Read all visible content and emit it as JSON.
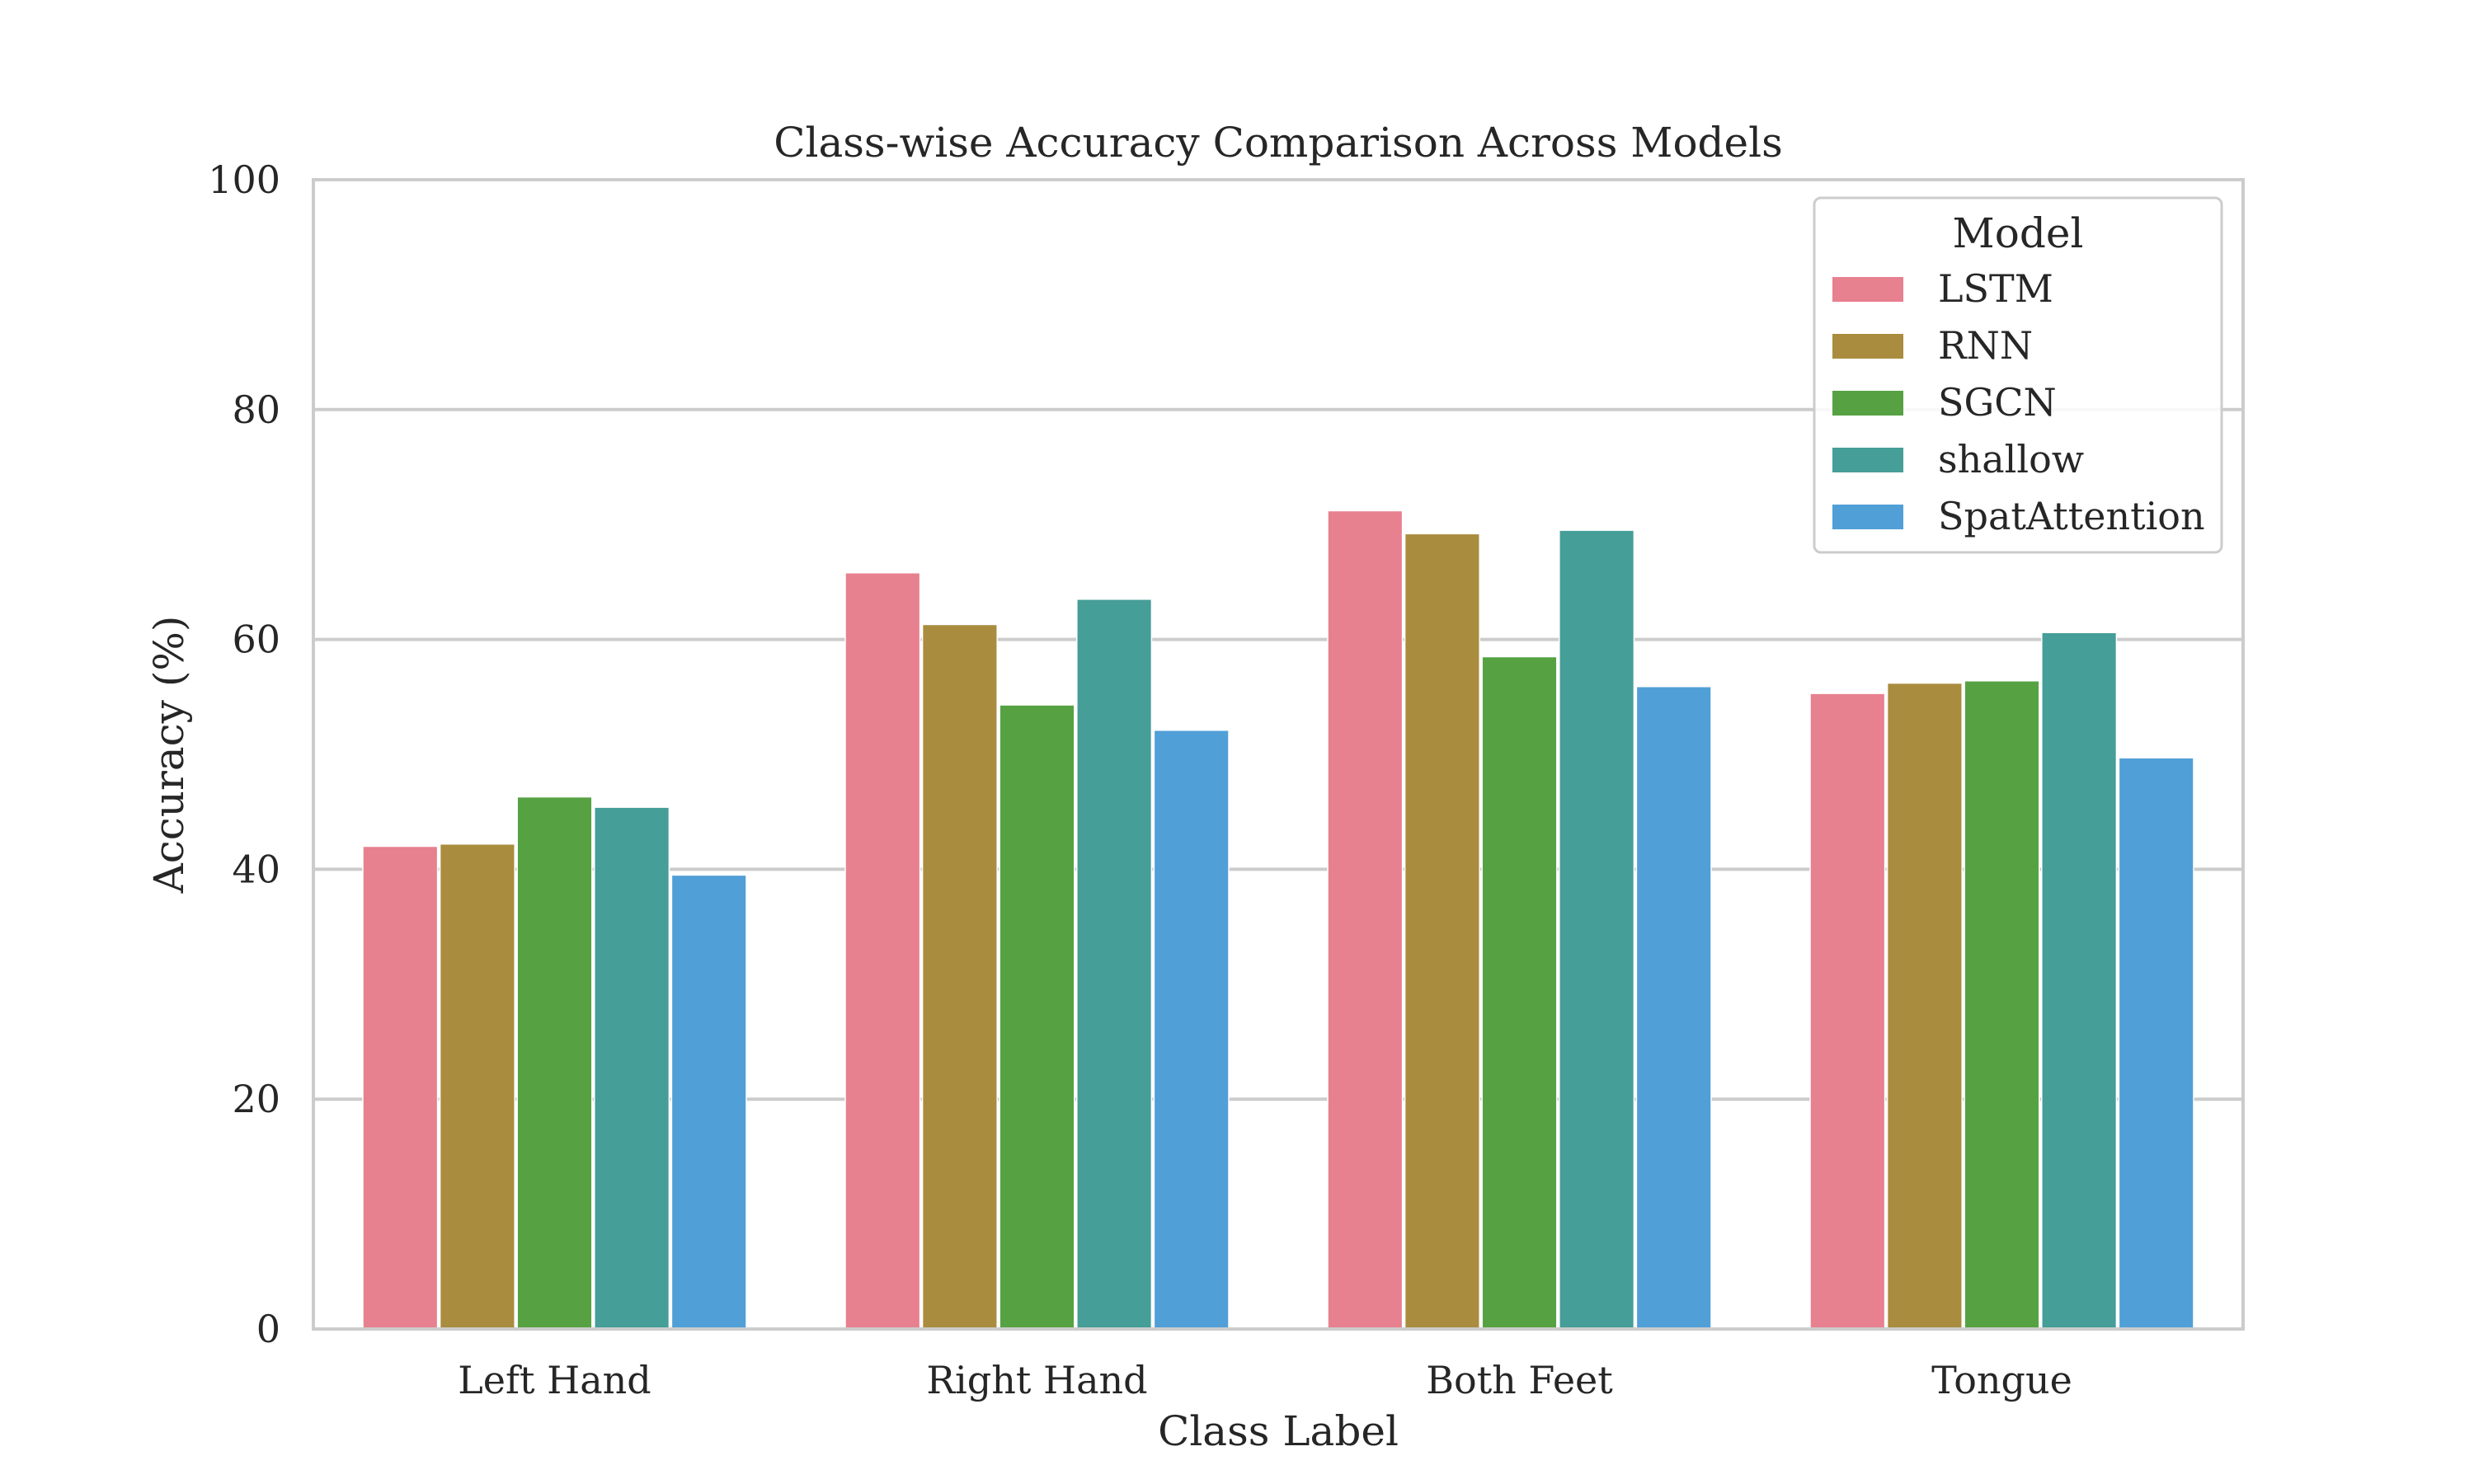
{
  "chart_data": {
    "type": "bar",
    "title": "Class-wise Accuracy Comparison Across Models",
    "xlabel": "Class Label",
    "ylabel": "Accuracy (%)",
    "categories": [
      "Left Hand",
      "Right Hand",
      "Both Feet",
      "Tongue"
    ],
    "ylim": [
      0,
      100
    ],
    "yticks": [
      "0",
      "20",
      "40",
      "60",
      "80",
      "100"
    ],
    "grid": "horizontal",
    "legend": {
      "title": "Model",
      "placement": "top-right"
    },
    "series": [
      {
        "name": "LSTM",
        "color": "#e7808f",
        "values": [
          42.0,
          65.8,
          71.2,
          55.3
        ]
      },
      {
        "name": "RNN",
        "color": "#a98c3e",
        "values": [
          42.2,
          61.3,
          69.2,
          56.2
        ]
      },
      {
        "name": "SGCN",
        "color": "#56a243",
        "values": [
          46.3,
          54.3,
          58.5,
          56.4
        ]
      },
      {
        "name": "shallow",
        "color": "#459e97",
        "values": [
          45.4,
          63.5,
          69.5,
          60.6
        ]
      },
      {
        "name": "SpatAttention",
        "color": "#519fd7",
        "values": [
          39.5,
          52.1,
          55.9,
          49.7
        ]
      }
    ]
  }
}
